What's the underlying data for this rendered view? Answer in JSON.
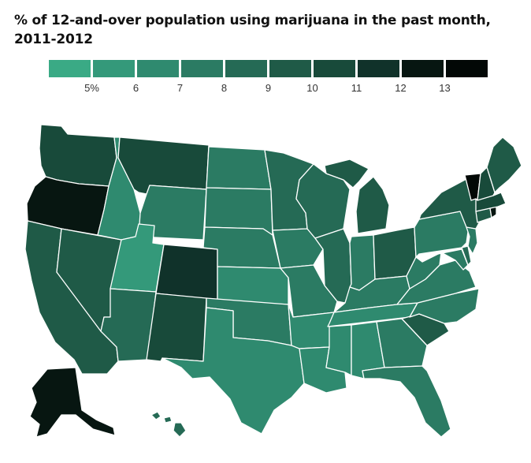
{
  "title": "% of 12-and-over population using marijuana in the past month, 2011-2012",
  "legend": {
    "ticks": [
      "5%",
      "6",
      "7",
      "8",
      "9",
      "10",
      "11",
      "12",
      "13"
    ],
    "colors": [
      "#3aaa85",
      "#34997a",
      "#2f8a6f",
      "#2b7b63",
      "#256a55",
      "#1f5a47",
      "#184a3a",
      "#10322a",
      "#071611",
      "#020806"
    ]
  },
  "map_data": {
    "unit": "percent",
    "states": {
      "WA": 10,
      "OR": 12,
      "CA": 9,
      "NV": 9,
      "ID": 6,
      "MT": 10,
      "WY": 7,
      "UT": 5,
      "CO": 11,
      "AZ": 8,
      "NM": 10,
      "ND": 7,
      "SD": 7,
      "NE": 7,
      "KS": 6,
      "OK": 7,
      "TX": 6,
      "MN": 8,
      "IA": 7,
      "MO": 7,
      "AR": 6,
      "LA": 6,
      "WI": 8,
      "IL": 8,
      "MI": 9,
      "IN": 7,
      "OH": 9,
      "KY": 7,
      "TN": 6,
      "MS": 6,
      "AL": 6,
      "GA": 7,
      "FL": 7,
      "SC": 9,
      "NC": 7,
      "VA": 7,
      "WV": 7,
      "PA": 7,
      "NY": 9,
      "VT": 13,
      "NH": 10,
      "ME": 9,
      "MA": 10,
      "RI": 12,
      "CT": 9,
      "NJ": 7,
      "DE": 8,
      "MD": 7,
      "AK": 12,
      "HI": 8
    }
  }
}
